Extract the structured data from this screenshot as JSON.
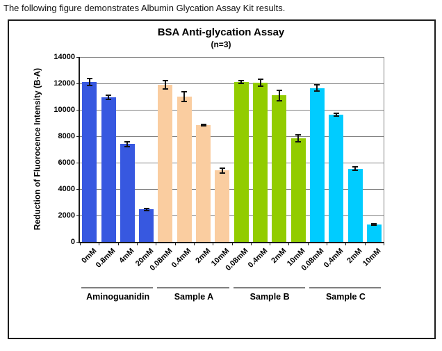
{
  "caption": "The following figure demonstrates Albumin Glycation Assay Kit results.",
  "chart_data": {
    "type": "bar",
    "title": "BSA Anti-glycation Assay",
    "subtitle": "(n=3)",
    "ylabel": "Reduction of Fluorocence Intensity (B-A)",
    "xlabel": "",
    "ylim": [
      0,
      14000
    ],
    "ytick_step": 2000,
    "yticks": [
      "0",
      "2000",
      "4000",
      "6000",
      "8000",
      "10000",
      "12000",
      "14000"
    ],
    "grid": true,
    "legend": "none",
    "error_bars": true,
    "gridline_color": "#808080",
    "groups": [
      {
        "name": "Aminoguanidin",
        "color": "#3758E0",
        "bars": [
          {
            "label": "0mM",
            "value": 12100,
            "error": 250
          },
          {
            "label": "0.8mM",
            "value": 10950,
            "error": 150
          },
          {
            "label": "4mM",
            "value": 7400,
            "error": 200
          },
          {
            "label": "20mM",
            "value": 2450,
            "error": 60
          }
        ]
      },
      {
        "name": "Sample A",
        "color": "#FACDA0",
        "bars": [
          {
            "label": "0.08mM",
            "value": 11900,
            "error": 300
          },
          {
            "label": "0.4mM",
            "value": 11000,
            "error": 350
          },
          {
            "label": "2mM",
            "value": 8850,
            "error": 70
          },
          {
            "label": "10mM",
            "value": 5400,
            "error": 200
          }
        ]
      },
      {
        "name": "Sample B",
        "color": "#92CC00",
        "bars": [
          {
            "label": "0.08mM",
            "value": 12100,
            "error": 120
          },
          {
            "label": "0.4mM",
            "value": 12050,
            "error": 250
          },
          {
            "label": "2mM",
            "value": 11100,
            "error": 400
          },
          {
            "label": "10mM",
            "value": 7850,
            "error": 250
          }
        ]
      },
      {
        "name": "Sample C",
        "color": "#00CCFF",
        "bars": [
          {
            "label": "0.08mM",
            "value": 11650,
            "error": 250
          },
          {
            "label": "0.4mM",
            "value": 9650,
            "error": 100
          },
          {
            "label": "2mM",
            "value": 5550,
            "error": 130
          },
          {
            "label": "10mM",
            "value": 1300,
            "error": 60
          }
        ]
      }
    ]
  }
}
